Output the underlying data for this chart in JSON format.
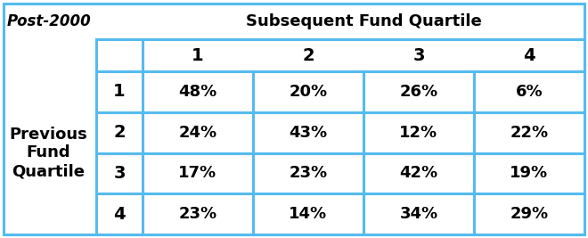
{
  "title_topleft": "Post-2000",
  "title_topcenter": "Subsequent Fund Quartile",
  "row_header": "Previous\nFund\nQuartile",
  "col_headers": [
    "1",
    "2",
    "3",
    "4"
  ],
  "row_labels": [
    "1",
    "2",
    "3",
    "4"
  ],
  "table_data": [
    [
      "48%",
      "20%",
      "26%",
      "6%"
    ],
    [
      "24%",
      "43%",
      "12%",
      "22%"
    ],
    [
      "17%",
      "23%",
      "42%",
      "19%"
    ],
    [
      "23%",
      "14%",
      "34%",
      "29%"
    ]
  ],
  "border_color": "#55BBEE",
  "line_color": "#55BBEE",
  "text_color": "#000000",
  "bg_color": "#ffffff",
  "figsize": [
    6.6,
    2.67
  ],
  "dpi": 100
}
